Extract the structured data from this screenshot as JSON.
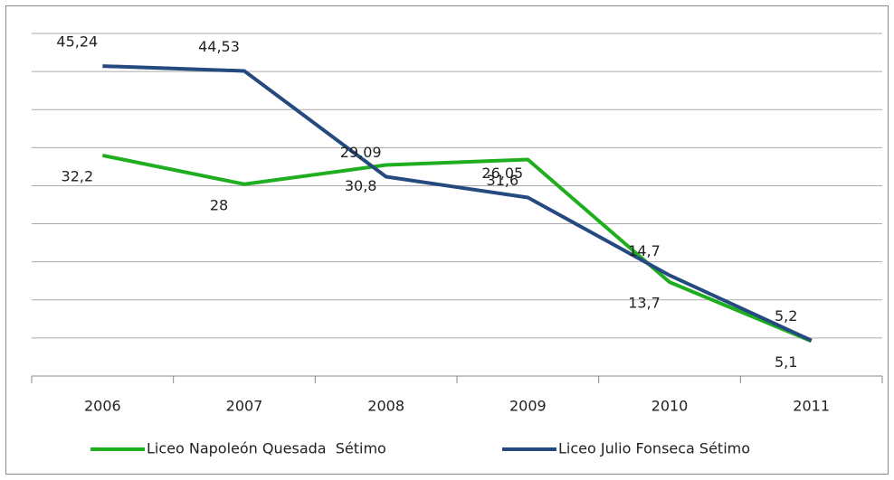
{
  "chart_data": {
    "type": "line",
    "categories": [
      "2006",
      "2007",
      "2008",
      "2009",
      "2010",
      "2011"
    ],
    "series": [
      {
        "name": "Liceo Napoleón Quesada  Sétimo",
        "color": "#1fae1f",
        "values": [
          32.2,
          28,
          30.8,
          31.6,
          13.7,
          5.1
        ],
        "value_labels": [
          "32,2",
          "28",
          "30,8",
          "31,6",
          "13,7",
          "5,1"
        ]
      },
      {
        "name": "Liceo Julio Fonseca Sétimo",
        "color": "#254a80",
        "values": [
          45.24,
          44.53,
          29.09,
          26.05,
          14.7,
          5.2
        ],
        "value_labels": [
          "45,24",
          "44,53",
          "29,09",
          "26,05",
          "14,7",
          "5,2"
        ]
      }
    ],
    "ylim": [
      0,
      50
    ],
    "grid": true,
    "legend": "bottom"
  }
}
